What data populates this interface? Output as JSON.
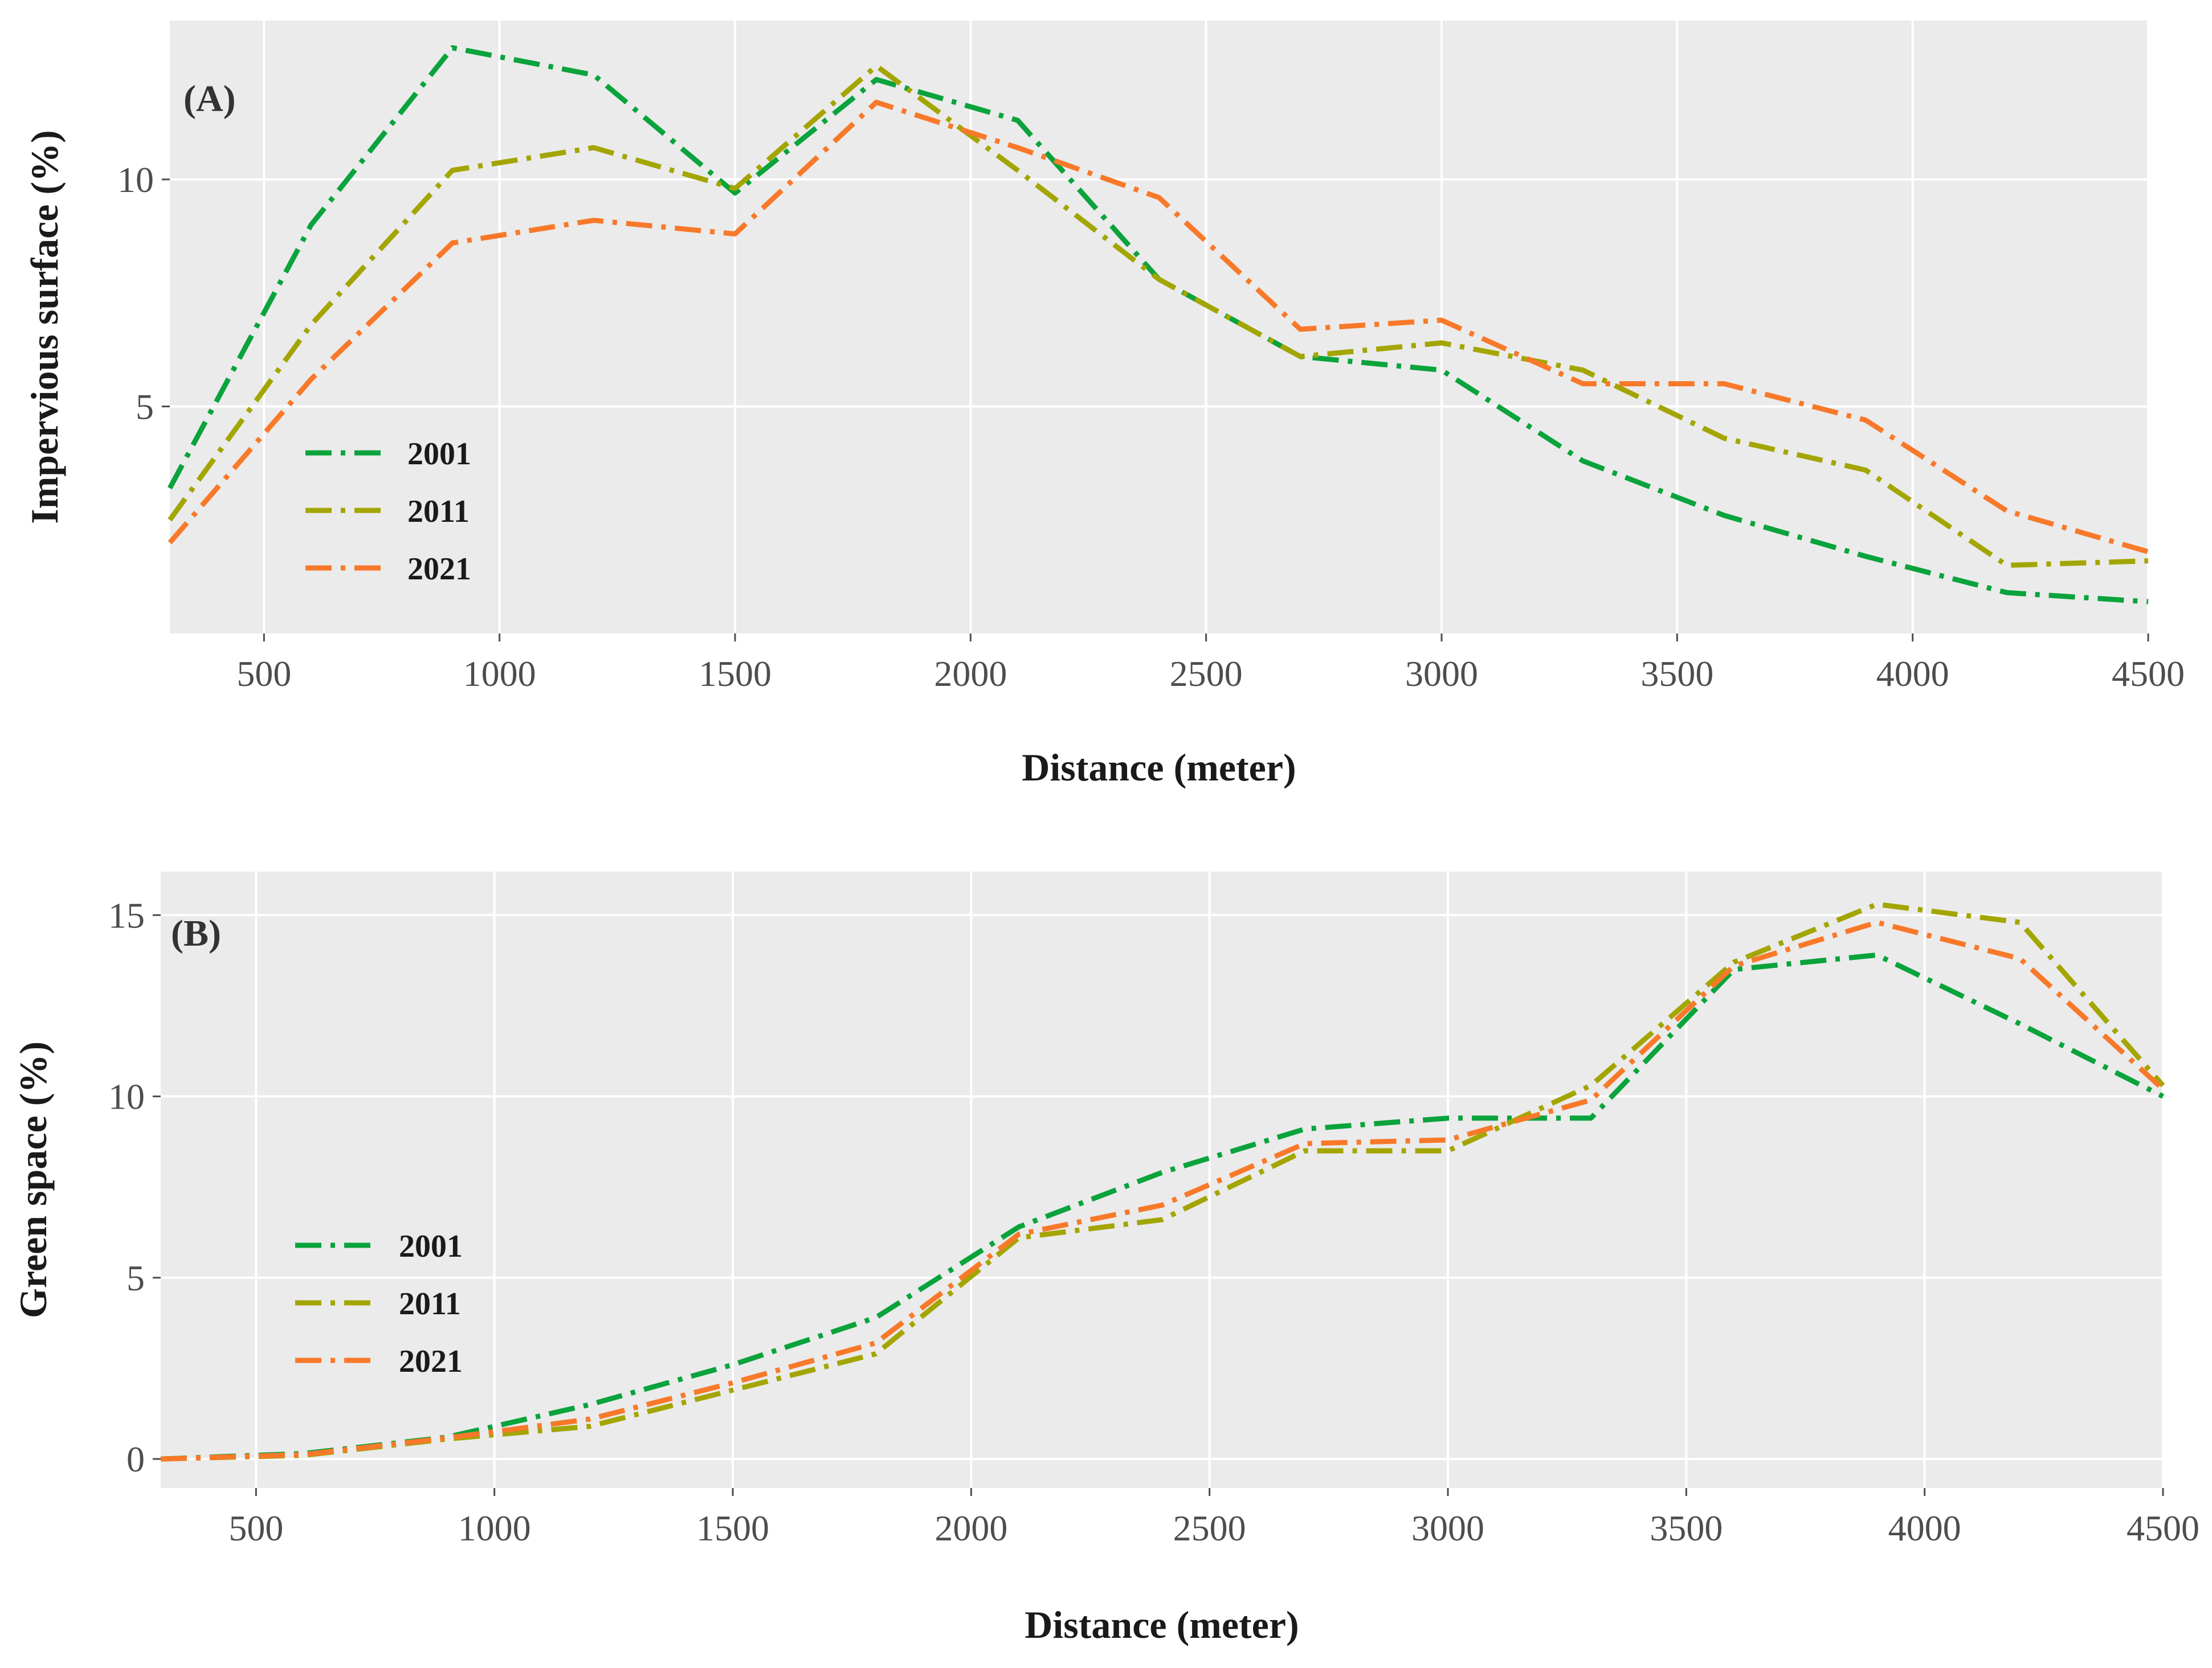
{
  "chart_data": [
    {
      "type": "line",
      "panel_label": "(A)",
      "xlabel": "Distance (meter)",
      "ylabel": "Impervious surface (%)",
      "xlim": [
        300,
        4500
      ],
      "ylim": [
        0,
        13.5
      ],
      "x_ticks": [
        500,
        1000,
        1500,
        2000,
        2500,
        3000,
        3500,
        4000,
        4500
      ],
      "y_ticks": [
        5,
        10
      ],
      "legend_position": "left",
      "x": [
        300,
        600,
        900,
        1200,
        1500,
        1800,
        2100,
        2400,
        2700,
        3000,
        3300,
        3600,
        3900,
        4200,
        4500
      ],
      "series": [
        {
          "name": "2001",
          "color": "#0aa33c",
          "values": [
            3.2,
            9.0,
            12.9,
            12.3,
            9.7,
            12.2,
            11.3,
            7.8,
            6.1,
            5.8,
            3.8,
            2.6,
            1.7,
            0.9,
            0.7
          ]
        },
        {
          "name": "2011",
          "color": "#a3a500",
          "values": [
            2.5,
            6.8,
            10.2,
            10.7,
            9.8,
            12.5,
            10.2,
            7.8,
            6.1,
            6.4,
            5.8,
            4.3,
            3.6,
            1.5,
            1.6
          ]
        },
        {
          "name": "2021",
          "color": "#f8792a",
          "values": [
            2.0,
            5.6,
            8.6,
            9.1,
            8.8,
            11.7,
            10.7,
            9.6,
            6.7,
            6.9,
            5.5,
            5.5,
            4.7,
            2.7,
            1.8
          ]
        }
      ]
    },
    {
      "type": "line",
      "panel_label": "(B)",
      "xlabel": "Distance (meter)",
      "ylabel": "Green space (%)",
      "xlim": [
        300,
        4500
      ],
      "ylim": [
        -0.8,
        16.2
      ],
      "x_ticks": [
        500,
        1000,
        1500,
        2000,
        2500,
        3000,
        3500,
        4000,
        4500
      ],
      "y_ticks": [
        0,
        5,
        10,
        15
      ],
      "legend_position": "left",
      "x": [
        300,
        600,
        900,
        1200,
        1500,
        1800,
        2100,
        2400,
        2700,
        3000,
        3300,
        3600,
        3900,
        4200,
        4500
      ],
      "series": [
        {
          "name": "2001",
          "color": "#0aa33c",
          "values": [
            0.0,
            0.15,
            0.6,
            1.5,
            2.6,
            3.9,
            6.4,
            7.9,
            9.1,
            9.4,
            9.4,
            13.5,
            13.9,
            12.0,
            10.0
          ]
        },
        {
          "name": "2011",
          "color": "#a3a500",
          "values": [
            0.0,
            0.1,
            0.55,
            0.9,
            1.9,
            2.9,
            6.1,
            6.6,
            8.5,
            8.5,
            10.3,
            13.7,
            15.3,
            14.8,
            10.3
          ]
        },
        {
          "name": "2021",
          "color": "#f8792a",
          "values": [
            0.0,
            0.12,
            0.58,
            1.1,
            2.1,
            3.2,
            6.2,
            7.0,
            8.7,
            8.8,
            9.9,
            13.6,
            14.8,
            13.8,
            10.2
          ]
        }
      ]
    }
  ]
}
